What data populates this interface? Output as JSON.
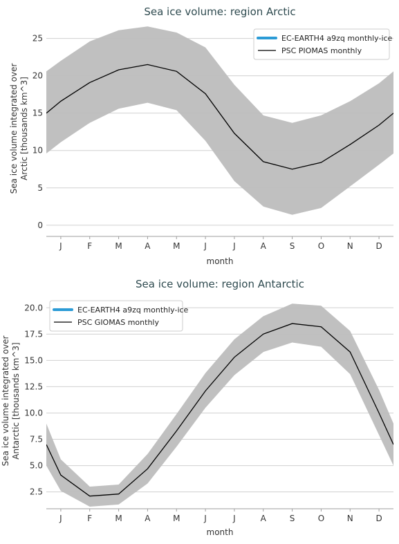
{
  "colors": {
    "band": "#bdbdbd",
    "line": "#000000",
    "grid": "#d0d0d0",
    "legend_model": "#2b9bd6",
    "title": "#2e4a4f"
  },
  "chart_data": [
    {
      "type": "line",
      "title": "Sea ice volume: region Arctic",
      "xlabel": "month",
      "ylabel_line1": "Sea ice volume integrated over",
      "ylabel_line2": "Arctic [thousands km^3]",
      "categories": [
        "J",
        "F",
        "M",
        "A",
        "M",
        "J",
        "J",
        "A",
        "S",
        "O",
        "N",
        "D"
      ],
      "ylim": [
        -1.5,
        27
      ],
      "yticks": [
        0,
        5,
        10,
        15,
        20,
        25
      ],
      "ytick_labels": [
        "0",
        "5",
        "10",
        "15",
        "20",
        "25"
      ],
      "grid": true,
      "legend_position": "top-right",
      "legend": [
        "EC-EARTH4 a9zq monthly-ice",
        "PSC PIOMAS monthly"
      ],
      "series": [
        {
          "name": "PSC PIOMAS monthly",
          "x": [
            0.5,
            1,
            2,
            3,
            4,
            5,
            6,
            7,
            8,
            9,
            10,
            11,
            12,
            12.5
          ],
          "values": [
            15.0,
            16.6,
            19.1,
            20.8,
            21.5,
            20.6,
            17.6,
            12.3,
            8.5,
            7.5,
            8.4,
            10.8,
            13.4,
            15.0
          ],
          "lower": [
            9.6,
            11.1,
            13.7,
            15.6,
            16.4,
            15.4,
            11.3,
            5.9,
            2.5,
            1.4,
            2.3,
            5.2,
            8.1,
            9.6
          ],
          "upper": [
            20.6,
            22.0,
            24.6,
            26.1,
            26.6,
            25.8,
            23.8,
            18.8,
            14.7,
            13.7,
            14.7,
            16.6,
            19.0,
            20.6
          ]
        }
      ]
    },
    {
      "type": "line",
      "title": "Sea ice volume: region Antarctic",
      "xlabel": "month",
      "ylabel_line1": "Sea ice volume integrated over",
      "ylabel_line2": "Antarctic [thousands km^3]",
      "categories": [
        "J",
        "F",
        "M",
        "A",
        "M",
        "J",
        "J",
        "A",
        "S",
        "O",
        "N",
        "D"
      ],
      "ylim": [
        0.9,
        21.2
      ],
      "yticks": [
        2.5,
        5.0,
        7.5,
        10.0,
        12.5,
        15.0,
        17.5,
        20.0
      ],
      "ytick_labels": [
        "2.5",
        "5.0",
        "7.5",
        "10.0",
        "12.5",
        "15.0",
        "17.5",
        "20.0"
      ],
      "grid": true,
      "legend_position": "top-left",
      "legend": [
        "EC-EARTH4 a9zq monthly-ice",
        "PSC GIOMAS monthly"
      ],
      "series": [
        {
          "name": "PSC GIOMAS monthly",
          "x": [
            0.5,
            1,
            2,
            3,
            4,
            5,
            6,
            7,
            8,
            9,
            10,
            11,
            12,
            12.5
          ],
          "values": [
            7.0,
            4.1,
            2.1,
            2.3,
            4.7,
            8.3,
            12.1,
            15.3,
            17.5,
            18.5,
            18.2,
            15.8,
            10.0,
            7.0
          ],
          "lower": [
            5.0,
            2.6,
            1.1,
            1.3,
            3.3,
            6.8,
            10.5,
            13.6,
            15.8,
            16.7,
            16.3,
            13.7,
            7.9,
            5.0
          ],
          "upper": [
            9.0,
            5.6,
            3.0,
            3.2,
            6.1,
            9.9,
            13.8,
            17.0,
            19.2,
            20.4,
            20.2,
            17.8,
            12.2,
            9.0
          ]
        }
      ]
    }
  ]
}
